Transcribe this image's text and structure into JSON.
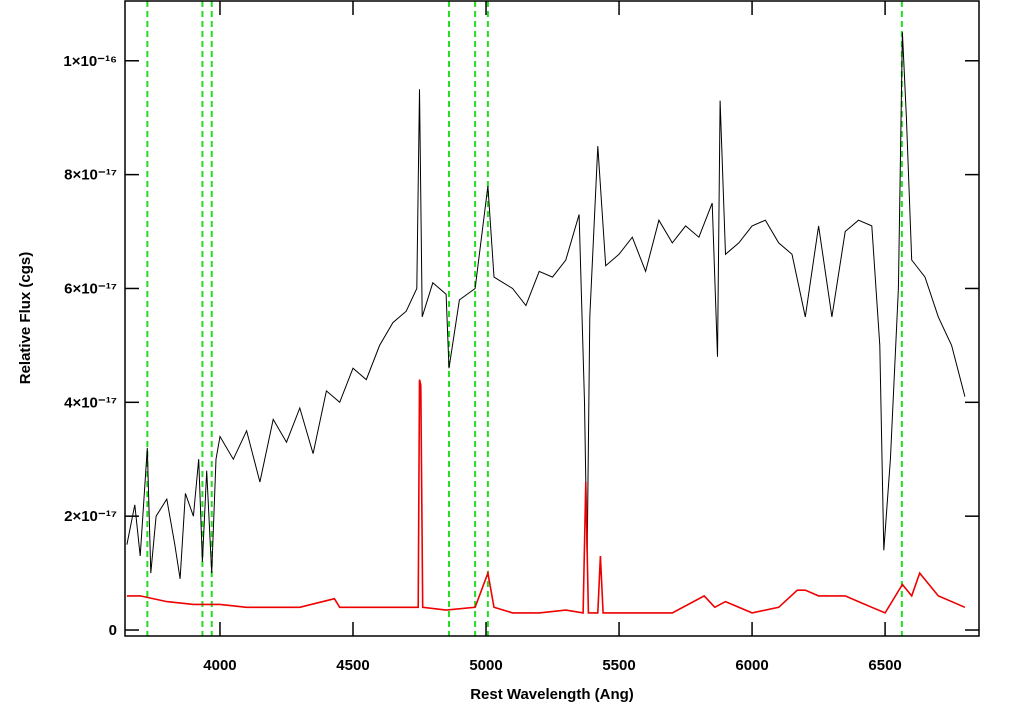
{
  "chart_data": {
    "type": "line",
    "xlabel": "Rest Wavelength (Ang)",
    "ylabel": "Relative Flux (cgs)",
    "xlim": [
      3643,
      6853
    ],
    "ylim": [
      -1.05e-18,
      1.105e-16
    ],
    "xticks": [
      4000,
      4500,
      5000,
      5500,
      6000,
      6500
    ],
    "yticks": [
      0,
      {
        "value": 2e-17,
        "label": "2×10⁻¹⁷"
      },
      {
        "value": 4e-17,
        "label": "4×10⁻¹⁷"
      },
      {
        "value": 6e-17,
        "label": "6×10⁻¹⁷"
      },
      {
        "value": 8e-17,
        "label": "8×10⁻¹⁷"
      },
      {
        "value": 1e-16,
        "label": "1×10⁻¹⁶"
      }
    ],
    "vlines": [
      3727,
      3934,
      3969,
      4861,
      4959,
      5007,
      6563
    ],
    "vline_color": "#22dd22",
    "series": [
      {
        "color": "#000000",
        "x": [
          3650,
          3680,
          3700,
          3727,
          3740,
          3760,
          3800,
          3830,
          3850,
          3870,
          3900,
          3920,
          3934,
          3950,
          3969,
          3985,
          4000,
          4050,
          4100,
          4150,
          4200,
          4250,
          4300,
          4350,
          4400,
          4450,
          4500,
          4550,
          4600,
          4650,
          4700,
          4740,
          4750,
          4760,
          4800,
          4850,
          4861,
          4900,
          4959,
          5007,
          5030,
          5100,
          5150,
          5200,
          5250,
          5300,
          5350,
          5370,
          5380,
          5390,
          5420,
          5450,
          5500,
          5550,
          5600,
          5650,
          5700,
          5750,
          5800,
          5850,
          5870,
          5880,
          5900,
          5950,
          6000,
          6050,
          6100,
          6150,
          6200,
          6250,
          6300,
          6350,
          6400,
          6450,
          6480,
          6495,
          6520,
          6550,
          6565,
          6580,
          6600,
          6650,
          6700,
          6750,
          6800
        ],
        "values": [
          1.5e-17,
          2.2e-17,
          1.3e-17,
          3.2e-17,
          1e-17,
          2e-17,
          2.3e-17,
          1.5e-17,
          9e-18,
          2.4e-17,
          2e-17,
          3e-17,
          1.2e-17,
          2.8e-17,
          1e-17,
          3e-17,
          3.4e-17,
          3e-17,
          3.5e-17,
          2.6e-17,
          3.7e-17,
          3.3e-17,
          3.9e-17,
          3.1e-17,
          4.2e-17,
          4e-17,
          4.6e-17,
          4.4e-17,
          5e-17,
          5.4e-17,
          5.6e-17,
          6e-17,
          9.5e-17,
          5.5e-17,
          6.1e-17,
          5.9e-17,
          4.6e-17,
          5.8e-17,
          6e-17,
          7.8e-17,
          6.2e-17,
          6e-17,
          5.7e-17,
          6.3e-17,
          6.2e-17,
          6.5e-17,
          7.3e-17,
          4e-17,
          1.2e-17,
          5.5e-17,
          8.5e-17,
          6.4e-17,
          6.6e-17,
          6.9e-17,
          6.3e-17,
          7.2e-17,
          6.8e-17,
          7.1e-17,
          6.9e-17,
          7.5e-17,
          4.8e-17,
          9.3e-17,
          6.6e-17,
          6.8e-17,
          7.1e-17,
          7.2e-17,
          6.8e-17,
          6.6e-17,
          5.5e-17,
          7.1e-17,
          5.5e-17,
          7e-17,
          7.2e-17,
          7.1e-17,
          5e-17,
          1.4e-17,
          3e-17,
          6e-17,
          1.05e-16,
          9e-17,
          6.5e-17,
          6.2e-17,
          5.5e-17,
          5e-17,
          4.1e-17
        ]
      },
      {
        "color": "#ee0000",
        "x": [
          3650,
          3700,
          3800,
          3900,
          4000,
          4100,
          4200,
          4300,
          4430,
          4450,
          4600,
          4745,
          4750,
          4755,
          4762,
          4850,
          4959,
          5007,
          5030,
          5100,
          5200,
          5300,
          5365,
          5375,
          5385,
          5420,
          5430,
          5440,
          5500,
          5600,
          5700,
          5820,
          5860,
          5900,
          6000,
          6100,
          6170,
          6200,
          6250,
          6300,
          6350,
          6400,
          6450,
          6500,
          6565,
          6600,
          6630,
          6700,
          6800
        ],
        "values": [
          6e-18,
          6e-18,
          5e-18,
          4.5e-18,
          4.5e-18,
          4e-18,
          4e-18,
          4e-18,
          5.5e-18,
          4e-18,
          4e-18,
          4e-18,
          4.4e-17,
          4.3e-17,
          4e-18,
          3.5e-18,
          4e-18,
          1e-17,
          4e-18,
          3e-18,
          3e-18,
          3.5e-18,
          3e-18,
          2.6e-17,
          3e-18,
          3e-18,
          1.3e-17,
          3e-18,
          3e-18,
          3e-18,
          3e-18,
          6e-18,
          4e-18,
          5e-18,
          3e-18,
          4e-18,
          7e-18,
          7e-18,
          6e-18,
          6e-18,
          6e-18,
          5e-18,
          4e-18,
          3e-18,
          8e-18,
          6e-18,
          1e-17,
          6e-18,
          4e-18
        ]
      }
    ]
  }
}
